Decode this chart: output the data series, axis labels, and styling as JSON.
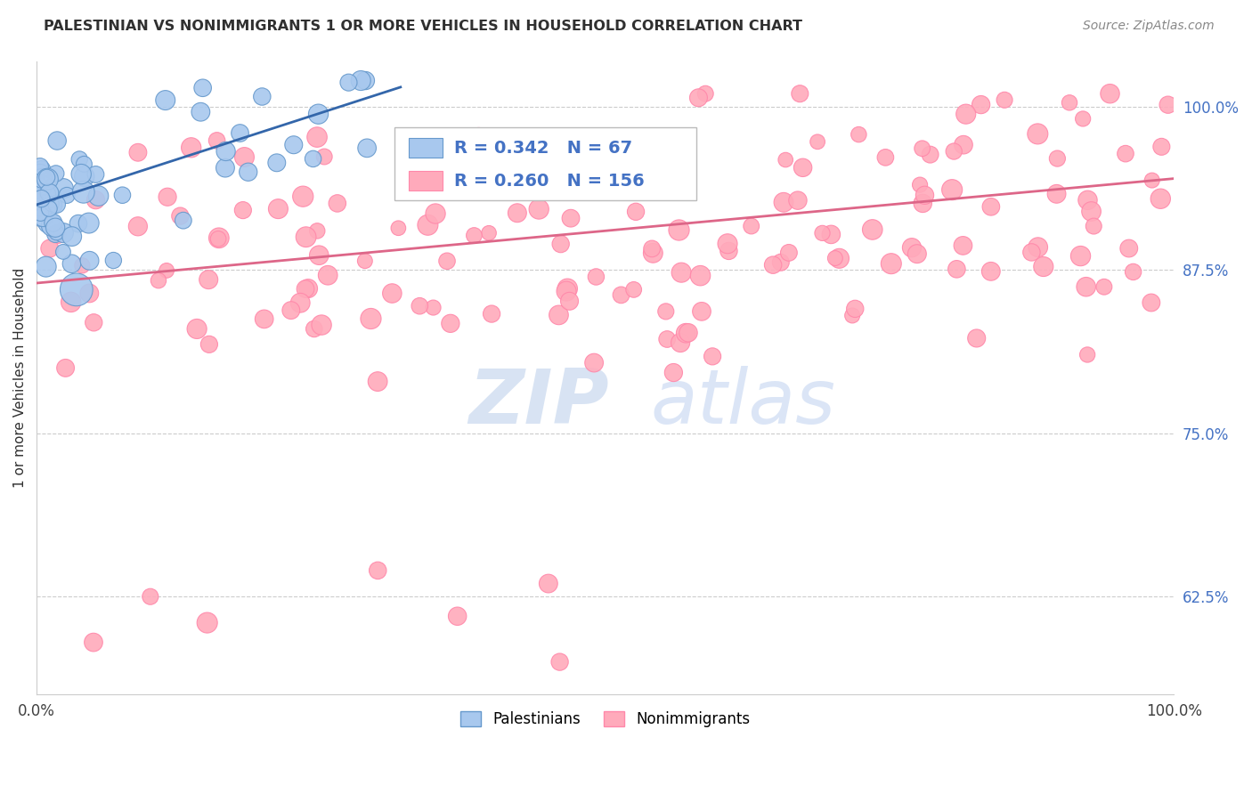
{
  "title": "PALESTINIAN VS NONIMMIGRANTS 1 OR MORE VEHICLES IN HOUSEHOLD CORRELATION CHART",
  "source": "Source: ZipAtlas.com",
  "ylabel": "1 or more Vehicles in Household",
  "right_yticks": [
    62.5,
    75.0,
    87.5,
    100.0
  ],
  "right_yticklabels": [
    "62.5%",
    "75.0%",
    "87.5%",
    "100.0%"
  ],
  "x_range": [
    0.0,
    100.0
  ],
  "y_range": [
    55.0,
    103.5
  ],
  "blue_R": 0.342,
  "blue_N": 67,
  "pink_R": 0.26,
  "pink_N": 156,
  "blue_color": "#A8C8EE",
  "blue_edge_color": "#6699CC",
  "pink_color": "#FFAABB",
  "pink_edge_color": "#FF88AA",
  "blue_line_color": "#3366AA",
  "pink_line_color": "#DD6688",
  "legend_border_color": "#BBBBBB",
  "stat_color": "#4472C4",
  "grid_color": "#CCCCCC",
  "title_color": "#303030",
  "source_color": "#888888",
  "ylabel_color": "#303030",
  "right_ytick_color": "#4472C4",
  "watermark_color": "#C8D8EE",
  "blue_line_x0": 0.0,
  "blue_line_y0": 92.5,
  "blue_line_x1": 32.0,
  "blue_line_y1": 101.5,
  "pink_line_x0": 0.0,
  "pink_line_y0": 86.5,
  "pink_line_x1": 100.0,
  "pink_line_y1": 94.5
}
